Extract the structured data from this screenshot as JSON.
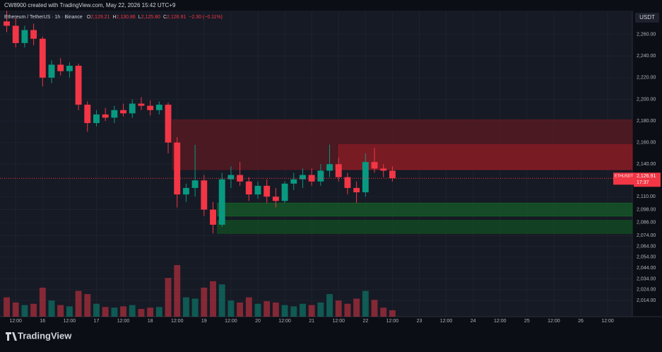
{
  "chart_data": {
    "type": "candlestick",
    "credit": "CW8900 created with TradingView.com, May 22, 2026 15:42 UTC+9",
    "symbol": "Ethereum / TetherUS · 1h · Binance",
    "ohlc_header": [
      {
        "key": "O",
        "text": "2,129.21"
      },
      {
        "key": "H",
        "text": "2,130.86"
      },
      {
        "key": "L",
        "text": "2,125.80"
      },
      {
        "key": "C",
        "text": "2,126.91"
      }
    ],
    "change": "−2.30 (−0.11%)",
    "currency": "USDT",
    "last_price": {
      "value": 2126.91,
      "label": "2,126.91"
    },
    "ticker": "ETHUSDT",
    "countdown": "17:37",
    "brand": "TradingView",
    "up_color": "#089981",
    "down_color": "#f23645",
    "xlim": [
      5,
      287
    ],
    "ylim": [
      1999,
      2282
    ],
    "xticks": [
      {
        "value": 12,
        "label": "12:00"
      },
      {
        "value": 24,
        "label": "16"
      },
      {
        "value": 36,
        "label": "12:00"
      },
      {
        "value": 48,
        "label": "17"
      },
      {
        "value": 60,
        "label": "12:00"
      },
      {
        "value": 72,
        "label": "18"
      },
      {
        "value": 84,
        "label": "12:00"
      },
      {
        "value": 96,
        "label": "19"
      },
      {
        "value": 108,
        "label": "12:00"
      },
      {
        "value": 120,
        "label": "20"
      },
      {
        "value": 132,
        "label": "12:00"
      },
      {
        "value": 144,
        "label": "21"
      },
      {
        "value": 156,
        "label": "12:00"
      },
      {
        "value": 168,
        "label": "22"
      },
      {
        "value": 180,
        "label": "12:00"
      },
      {
        "value": 192,
        "label": "23"
      },
      {
        "value": 204,
        "label": "12:00"
      },
      {
        "value": 216,
        "label": "24"
      },
      {
        "value": 228,
        "label": "12:00"
      },
      {
        "value": 240,
        "label": "25"
      },
      {
        "value": 252,
        "label": "12:00"
      },
      {
        "value": 264,
        "label": "26"
      },
      {
        "value": 276,
        "label": "12:00"
      }
    ],
    "yticks": [
      {
        "value": 2260,
        "label": "2,260.00"
      },
      {
        "value": 2240,
        "label": "2,240.00"
      },
      {
        "value": 2220,
        "label": "2,220.00"
      },
      {
        "value": 2200,
        "label": "2,200.00"
      },
      {
        "value": 2180,
        "label": "2,180.00"
      },
      {
        "value": 2160,
        "label": "2,160.00"
      },
      {
        "value": 2140,
        "label": "2,140.00"
      },
      {
        "value": 2110,
        "label": "2,110.00"
      },
      {
        "value": 2098,
        "label": "2,098.00"
      },
      {
        "value": 2086,
        "label": "2,086.00"
      },
      {
        "value": 2074,
        "label": "2,074.00"
      },
      {
        "value": 2064,
        "label": "2,064.00"
      },
      {
        "value": 2054,
        "label": "2,054.00"
      },
      {
        "value": 2044,
        "label": "2,044.00"
      },
      {
        "value": 2034,
        "label": "2,034.00"
      },
      {
        "value": 2024,
        "label": "2,024.00"
      },
      {
        "value": 2014,
        "label": "2,014.00"
      }
    ],
    "zones": [
      {
        "x": [
          82,
          287
        ],
        "y": [
          2135,
          2181
        ],
        "color": "#5c1a22"
      },
      {
        "x": [
          156,
          287
        ],
        "y": [
          2135,
          2158
        ],
        "color": "#8a1c24"
      },
      {
        "x": [
          102,
          287
        ],
        "y": [
          2092,
          2104
        ],
        "color": "#155c27"
      },
      {
        "x": [
          102,
          287
        ],
        "y": [
          2076,
          2088
        ],
        "color": "#124d22"
      }
    ],
    "x": [
      8,
      12,
      16,
      20,
      24,
      28,
      32,
      36,
      40,
      44,
      48,
      52,
      56,
      60,
      64,
      68,
      72,
      76,
      80,
      84,
      88,
      92,
      96,
      100,
      104,
      108,
      112,
      116,
      120,
      124,
      128,
      132,
      136,
      140,
      144,
      148,
      152,
      156,
      160,
      164,
      168,
      172,
      176,
      180
    ],
    "open": [
      2272,
      2268,
      2252,
      2264,
      2256,
      2220,
      2232,
      2226,
      2231,
      2195,
      2178,
      2186,
      2183,
      2190,
      2187,
      2196,
      2194,
      2190,
      2195,
      2160,
      2112,
      2118,
      2125,
      2098,
      2084,
      2126,
      2130,
      2124,
      2112,
      2120,
      2110,
      2106,
      2122,
      2126,
      2130,
      2124,
      2134,
      2140,
      2128,
      2118,
      2114,
      2142,
      2136,
      2134
    ],
    "high": [
      2282,
      2275,
      2268,
      2270,
      2258,
      2236,
      2238,
      2234,
      2233,
      2198,
      2190,
      2192,
      2194,
      2196,
      2200,
      2202,
      2199,
      2198,
      2197,
      2165,
      2122,
      2158,
      2130,
      2105,
      2132,
      2138,
      2142,
      2128,
      2124,
      2126,
      2118,
      2124,
      2132,
      2136,
      2136,
      2140,
      2158,
      2146,
      2132,
      2124,
      2150,
      2155,
      2140,
      2138
    ],
    "low": [
      2262,
      2248,
      2248,
      2250,
      2212,
      2215,
      2222,
      2220,
      2190,
      2170,
      2175,
      2180,
      2178,
      2184,
      2183,
      2190,
      2185,
      2186,
      2150,
      2100,
      2105,
      2110,
      2092,
      2076,
      2082,
      2118,
      2120,
      2106,
      2108,
      2104,
      2100,
      2104,
      2116,
      2118,
      2120,
      2120,
      2128,
      2124,
      2112,
      2104,
      2110,
      2132,
      2128,
      2124
    ],
    "close": [
      2268,
      2252,
      2264,
      2256,
      2220,
      2232,
      2226,
      2231,
      2195,
      2178,
      2186,
      2183,
      2190,
      2187,
      2196,
      2194,
      2190,
      2195,
      2160,
      2112,
      2118,
      2125,
      2098,
      2084,
      2126,
      2130,
      2124,
      2112,
      2120,
      2110,
      2106,
      2122,
      2126,
      2130,
      2124,
      2134,
      2140,
      2128,
      2118,
      2114,
      2142,
      2136,
      2134,
      2127
    ],
    "volume": [
      30,
      22,
      18,
      20,
      45,
      25,
      18,
      16,
      40,
      35,
      20,
      15,
      14,
      16,
      18,
      12,
      14,
      15,
      60,
      80,
      30,
      28,
      45,
      55,
      50,
      25,
      22,
      30,
      20,
      24,
      22,
      18,
      16,
      20,
      18,
      22,
      35,
      25,
      20,
      28,
      40,
      26,
      14,
      10
    ]
  }
}
